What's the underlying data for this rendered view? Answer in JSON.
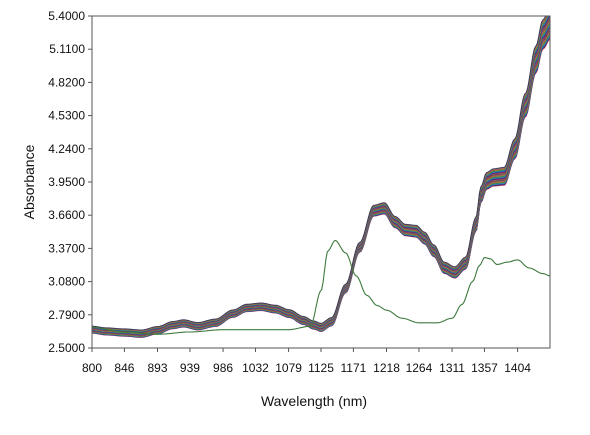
{
  "chart_data": {
    "type": "line",
    "title": "",
    "xlabel": "Wavelength (nm)",
    "ylabel": "Absorbance",
    "xlim": [
      800,
      1450
    ],
    "ylim": [
      2.5,
      5.4
    ],
    "x_ticks": [
      "800",
      "846",
      "893",
      "939",
      "986",
      "1032",
      "1079",
      "1125",
      "1171",
      "1218",
      "1264",
      "1311",
      "1357",
      "1404"
    ],
    "y_ticks": [
      "2.5000",
      "2.7900",
      "3.0800",
      "3.3700",
      "3.6600",
      "3.9500",
      "4.2400",
      "4.5300",
      "4.8200",
      "5.1100",
      "5.4000"
    ],
    "grid": false,
    "legend": "none",
    "main_band": {
      "x": [
        800,
        820,
        846,
        870,
        893,
        915,
        930,
        950,
        975,
        1000,
        1020,
        1040,
        1060,
        1080,
        1100,
        1115,
        1125,
        1140,
        1160,
        1180,
        1200,
        1215,
        1230,
        1245,
        1260,
        1272,
        1285,
        1300,
        1315,
        1330,
        1345,
        1352,
        1360,
        1370,
        1385,
        1400,
        1415,
        1430,
        1440,
        1450
      ],
      "mean": [
        2.66,
        2.645,
        2.635,
        2.625,
        2.655,
        2.7,
        2.715,
        2.69,
        2.72,
        2.8,
        2.85,
        2.86,
        2.84,
        2.8,
        2.74,
        2.7,
        2.68,
        2.73,
        3.02,
        3.38,
        3.7,
        3.72,
        3.6,
        3.53,
        3.52,
        3.46,
        3.35,
        3.2,
        3.16,
        3.24,
        3.58,
        3.84,
        3.96,
        3.99,
        4.0,
        4.24,
        4.62,
        5.02,
        5.24,
        5.33
      ],
      "spread": 0.035,
      "curve_count": 46,
      "colors": [
        "#c41e3a",
        "#8b1a4a",
        "#2c3e9e",
        "#1f3b8f",
        "#3a6ea5",
        "#4b8bbe",
        "#1b7f79",
        "#2e8b57",
        "#6b8e23",
        "#b8860b",
        "#8e44ad",
        "#d35400",
        "#7f8c8d",
        "#2c2c54",
        "#a52a2a",
        "#5f9ea0"
      ]
    },
    "outlier_series": {
      "x": [
        800,
        846,
        893,
        939,
        986,
        1032,
        1079,
        1110,
        1125,
        1135,
        1145,
        1160,
        1175,
        1190,
        1205,
        1218,
        1240,
        1264,
        1290,
        1311,
        1325,
        1340,
        1350,
        1357,
        1365,
        1375,
        1390,
        1404,
        1420,
        1440,
        1450
      ],
      "y": [
        2.68,
        2.64,
        2.62,
        2.64,
        2.66,
        2.66,
        2.66,
        2.69,
        3.0,
        3.35,
        3.44,
        3.33,
        3.13,
        2.96,
        2.87,
        2.83,
        2.76,
        2.72,
        2.72,
        2.76,
        2.88,
        3.08,
        3.22,
        3.29,
        3.28,
        3.23,
        3.25,
        3.27,
        3.2,
        3.15,
        3.13
      ],
      "color": "#3d7a3d"
    }
  }
}
